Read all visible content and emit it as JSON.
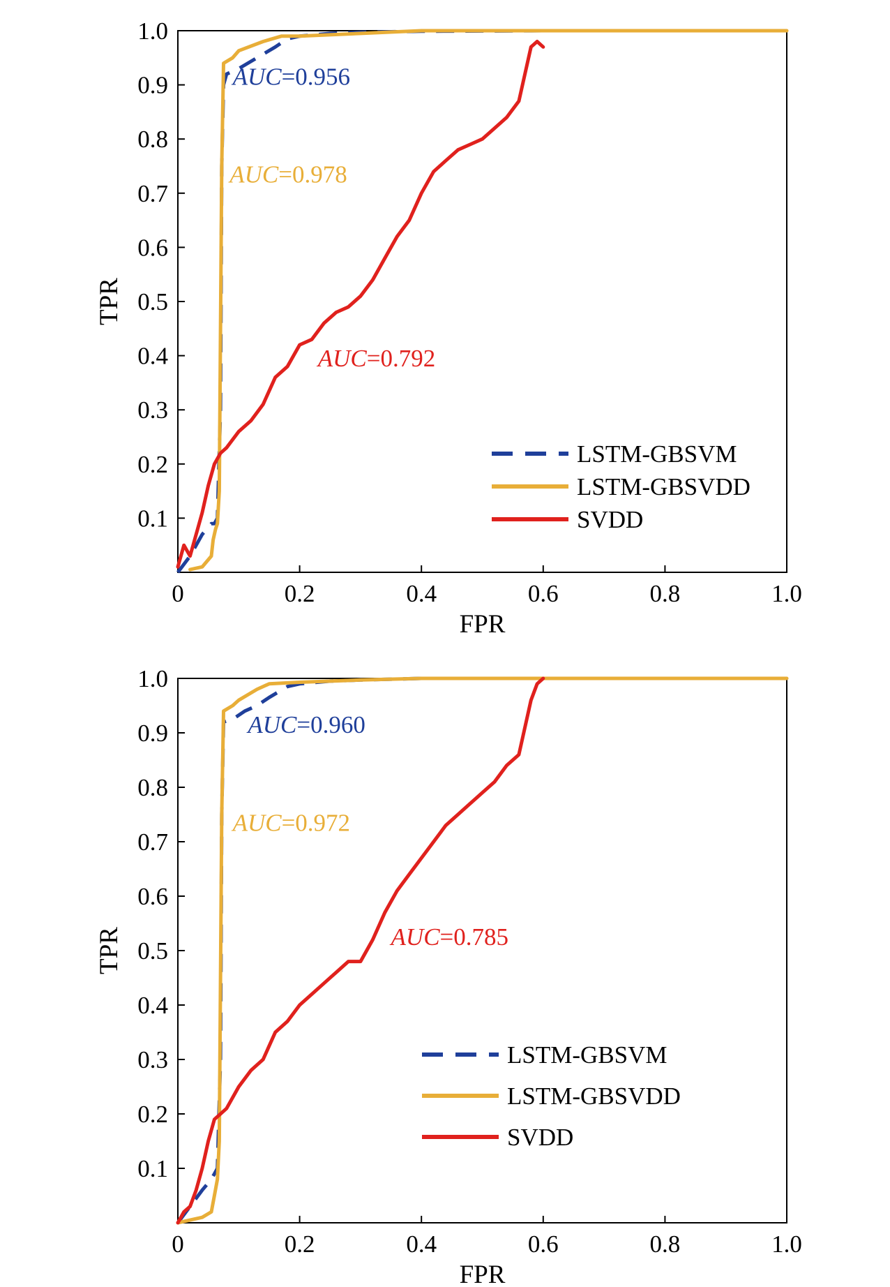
{
  "colors": {
    "LSTM-GBSVM": "#1f3f9a",
    "LSTM-GBSVDD": "#e8ae38",
    "SVDD": "#e0211d",
    "axis": "#000000"
  },
  "chart_data": [
    {
      "type": "line",
      "xlabel": "FPR",
      "ylabel": "TPR",
      "xlim": [
        0,
        1.0
      ],
      "ylim": [
        0,
        1.0
      ],
      "xticks": [
        "0",
        "0.2",
        "0.4",
        "0.6",
        "0.8",
        "1.0"
      ],
      "yticks": [
        "0.1",
        "0.2",
        "0.3",
        "0.4",
        "0.5",
        "0.6",
        "0.7",
        "0.8",
        "0.9",
        "1.0"
      ],
      "grid": false,
      "legend_position": "bottom-right",
      "series": [
        {
          "name": "LSTM-GBSVM",
          "style": "dashed",
          "color": "#1f3f9a",
          "x": [
            0.0,
            0.02,
            0.04,
            0.055,
            0.06,
            0.065,
            0.07,
            0.072,
            0.075,
            0.08,
            0.1,
            0.13,
            0.16,
            0.18,
            0.2,
            0.25,
            0.3,
            0.4,
            0.6,
            1.0
          ],
          "y": [
            0.0,
            0.03,
            0.07,
            0.09,
            0.09,
            0.1,
            0.3,
            0.75,
            0.9,
            0.92,
            0.93,
            0.95,
            0.97,
            0.985,
            0.99,
            0.995,
            0.997,
            0.999,
            1.0,
            1.0
          ]
        },
        {
          "name": "LSTM-GBSVDD",
          "style": "solid",
          "color": "#e8ae38",
          "x": [
            0.02,
            0.04,
            0.055,
            0.058,
            0.062,
            0.065,
            0.068,
            0.072,
            0.075,
            0.09,
            0.1,
            0.14,
            0.17,
            0.2,
            0.3,
            0.4,
            0.6,
            0.8,
            1.0
          ],
          "y": [
            0.005,
            0.01,
            0.03,
            0.06,
            0.08,
            0.09,
            0.15,
            0.75,
            0.94,
            0.95,
            0.963,
            0.98,
            0.99,
            0.99,
            0.995,
            1.0,
            1.0,
            1.0,
            1.0
          ]
        },
        {
          "name": "SVDD",
          "style": "solid",
          "color": "#e0211d",
          "x": [
            0.0,
            0.01,
            0.02,
            0.03,
            0.04,
            0.05,
            0.06,
            0.07,
            0.08,
            0.1,
            0.12,
            0.14,
            0.16,
            0.18,
            0.2,
            0.22,
            0.24,
            0.26,
            0.28,
            0.3,
            0.32,
            0.34,
            0.36,
            0.38,
            0.4,
            0.42,
            0.44,
            0.46,
            0.48,
            0.5,
            0.52,
            0.54,
            0.56,
            0.58,
            0.59,
            0.6
          ],
          "y": [
            0.01,
            0.05,
            0.03,
            0.07,
            0.11,
            0.16,
            0.2,
            0.22,
            0.23,
            0.26,
            0.28,
            0.31,
            0.36,
            0.38,
            0.42,
            0.43,
            0.46,
            0.48,
            0.49,
            0.51,
            0.54,
            0.58,
            0.62,
            0.65,
            0.7,
            0.74,
            0.76,
            0.78,
            0.79,
            0.8,
            0.82,
            0.84,
            0.87,
            0.97,
            0.98,
            0.97
          ]
        }
      ],
      "annotations": [
        {
          "label": "AUC",
          "value": "=0.956",
          "color": "#1f3f9a",
          "x": 0.09,
          "y": 0.9
        },
        {
          "label": "AUC",
          "value": "=0.978",
          "color": "#e8ae38",
          "x": 0.085,
          "y": 0.72
        },
        {
          "label": "AUC",
          "value": "=0.792",
          "color": "#e0211d",
          "x": 0.23,
          "y": 0.38
        }
      ]
    },
    {
      "type": "line",
      "xlabel": "FPR",
      "ylabel": "TPR",
      "xlim": [
        0,
        1.0
      ],
      "ylim": [
        0,
        1.0
      ],
      "xticks": [
        "0",
        "0.2",
        "0.4",
        "0.6",
        "0.8",
        "1.0"
      ],
      "yticks": [
        "0.1",
        "0.2",
        "0.3",
        "0.4",
        "0.5",
        "0.6",
        "0.7",
        "0.8",
        "0.9",
        "1.0"
      ],
      "grid": false,
      "legend_position": "bottom-right",
      "series": [
        {
          "name": "LSTM-GBSVM",
          "style": "dashed",
          "color": "#1f3f9a",
          "x": [
            0.0,
            0.02,
            0.04,
            0.055,
            0.06,
            0.065,
            0.07,
            0.072,
            0.075,
            0.09,
            0.11,
            0.13,
            0.15,
            0.18,
            0.2,
            0.25,
            0.3,
            0.4,
            0.6,
            1.0
          ],
          "y": [
            0.0,
            0.03,
            0.06,
            0.08,
            0.09,
            0.1,
            0.3,
            0.75,
            0.92,
            0.925,
            0.94,
            0.95,
            0.965,
            0.985,
            0.99,
            0.995,
            0.997,
            1.0,
            1.0,
            1.0
          ]
        },
        {
          "name": "LSTM-GBSVDD",
          "style": "solid",
          "color": "#e8ae38",
          "x": [
            0.0,
            0.02,
            0.04,
            0.055,
            0.06,
            0.065,
            0.068,
            0.072,
            0.075,
            0.09,
            0.1,
            0.13,
            0.15,
            0.2,
            0.3,
            0.4,
            0.6,
            0.8,
            1.0
          ],
          "y": [
            0.0,
            0.005,
            0.01,
            0.02,
            0.05,
            0.08,
            0.15,
            0.75,
            0.94,
            0.95,
            0.96,
            0.98,
            0.99,
            0.993,
            0.997,
            1.0,
            1.0,
            1.0,
            1.0
          ]
        },
        {
          "name": "SVDD",
          "style": "solid",
          "color": "#e0211d",
          "x": [
            0.0,
            0.01,
            0.02,
            0.03,
            0.04,
            0.05,
            0.06,
            0.07,
            0.08,
            0.1,
            0.12,
            0.14,
            0.16,
            0.18,
            0.2,
            0.22,
            0.24,
            0.26,
            0.28,
            0.3,
            0.32,
            0.34,
            0.36,
            0.38,
            0.4,
            0.42,
            0.44,
            0.46,
            0.48,
            0.5,
            0.52,
            0.54,
            0.56,
            0.58,
            0.59,
            0.6
          ],
          "y": [
            0.0,
            0.02,
            0.03,
            0.06,
            0.1,
            0.15,
            0.19,
            0.2,
            0.21,
            0.25,
            0.28,
            0.3,
            0.35,
            0.37,
            0.4,
            0.42,
            0.44,
            0.46,
            0.48,
            0.48,
            0.52,
            0.57,
            0.61,
            0.64,
            0.67,
            0.7,
            0.73,
            0.75,
            0.77,
            0.79,
            0.81,
            0.84,
            0.86,
            0.96,
            0.99,
            1.0
          ]
        }
      ],
      "annotations": [
        {
          "label": "AUC",
          "value": "=0.960",
          "color": "#1f3f9a",
          "x": 0.115,
          "y": 0.9
        },
        {
          "label": "AUC",
          "value": "=0.972",
          "color": "#e8ae38",
          "x": 0.09,
          "y": 0.72
        },
        {
          "label": "AUC",
          "value": "=0.785",
          "color": "#e0211d",
          "x": 0.35,
          "y": 0.51
        }
      ]
    }
  ]
}
